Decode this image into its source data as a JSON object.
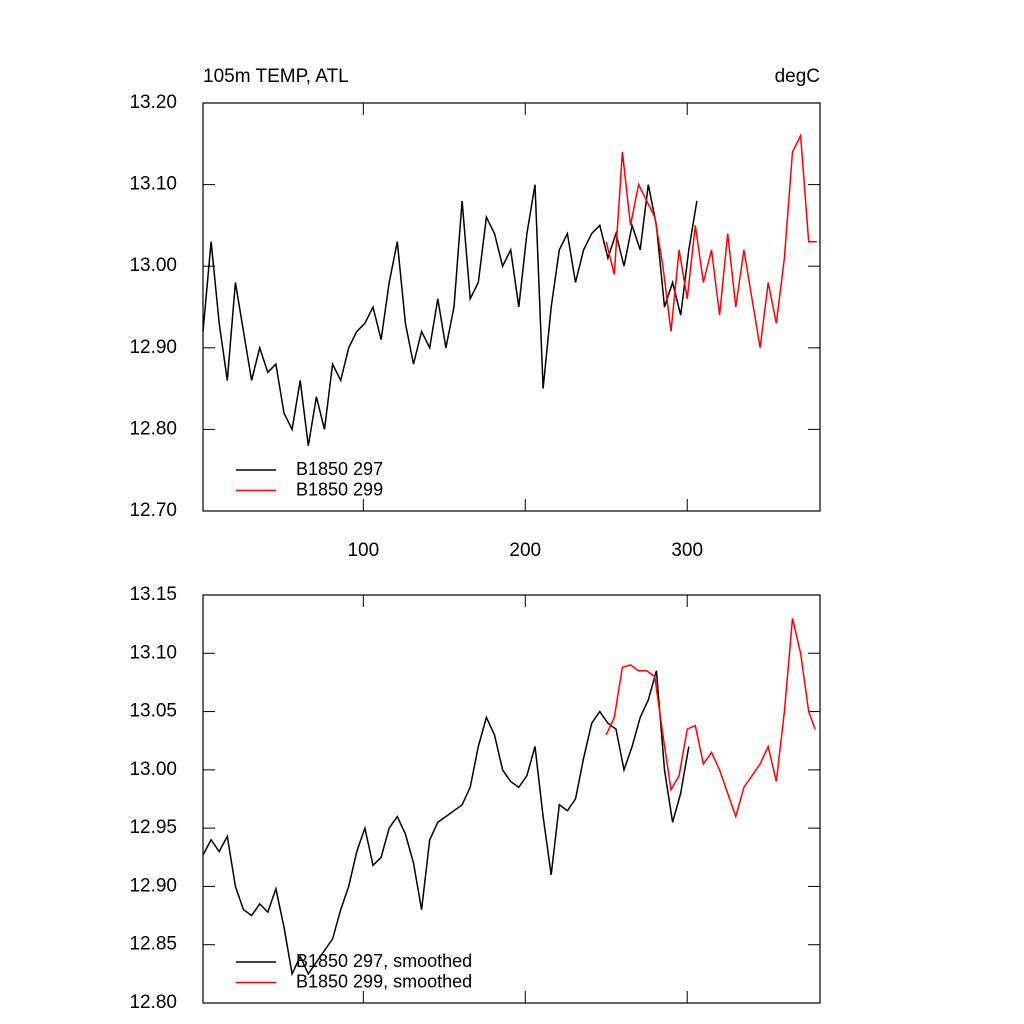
{
  "chart_data": [
    {
      "type": "line",
      "title": "105m TEMP, ATL",
      "units": "degC",
      "xlim": [
        1,
        382
      ],
      "xticks": [
        100,
        200,
        300
      ],
      "xtick_labels": true,
      "ylim": [
        12.7,
        13.2
      ],
      "yticks": [
        {
          "value": 12.7,
          "label": "12.70"
        },
        {
          "value": 12.8,
          "label": "12.80"
        },
        {
          "value": 12.9,
          "label": "12.90"
        },
        {
          "value": 13.0,
          "label": "13.00"
        },
        {
          "value": 13.1,
          "label": "13.10"
        },
        {
          "value": 13.2,
          "label": "13.20"
        }
      ],
      "legend": "lower left",
      "series": [
        {
          "name": "B1850 297",
          "color": "#000000",
          "x": [
            1,
            6,
            11,
            16,
            21,
            26,
            31,
            36,
            41,
            46,
            51,
            56,
            61,
            66,
            71,
            76,
            81,
            86,
            91,
            96,
            101,
            106,
            111,
            116,
            121,
            126,
            131,
            136,
            141,
            146,
            151,
            156,
            161,
            166,
            171,
            176,
            181,
            186,
            191,
            196,
            201,
            206,
            211,
            216,
            221,
            226,
            231,
            236,
            241,
            246,
            251,
            256,
            261,
            266,
            271,
            276,
            281,
            286,
            291,
            296,
            301,
            306
          ],
          "values": [
            12.92,
            13.03,
            12.93,
            12.86,
            12.98,
            12.92,
            12.86,
            12.9,
            12.87,
            12.88,
            12.82,
            12.8,
            12.86,
            12.78,
            12.84,
            12.8,
            12.88,
            12.86,
            12.9,
            12.92,
            12.93,
            12.95,
            12.91,
            12.98,
            13.03,
            12.93,
            12.88,
            12.92,
            12.9,
            12.96,
            12.9,
            12.95,
            13.08,
            12.96,
            12.98,
            13.06,
            13.04,
            13.0,
            13.02,
            12.95,
            13.04,
            13.1,
            12.85,
            12.95,
            13.02,
            13.04,
            12.98,
            13.02,
            13.04,
            13.05,
            13.01,
            13.04,
            13.0,
            13.05,
            13.02,
            13.1,
            13.05,
            12.95,
            12.98,
            12.94,
            13.02,
            13.08
          ]
        },
        {
          "name": "B1850 299",
          "color": "#ff0000",
          "x": [
            250,
            255,
            260,
            265,
            270,
            275,
            280,
            285,
            290,
            295,
            300,
            305,
            310,
            315,
            320,
            325,
            330,
            335,
            340,
            345,
            350,
            355,
            360,
            365,
            370,
            375,
            380
          ],
          "values": [
            13.03,
            12.99,
            13.14,
            13.05,
            13.1,
            13.08,
            13.06,
            13.0,
            12.92,
            13.02,
            12.96,
            13.05,
            12.98,
            13.02,
            12.94,
            13.04,
            12.95,
            13.02,
            12.96,
            12.9,
            12.98,
            12.93,
            13.01,
            13.14,
            13.16,
            13.03,
            13.03
          ]
        }
      ]
    },
    {
      "type": "line",
      "xlim": [
        1,
        382
      ],
      "xticks": [
        100,
        200,
        300
      ],
      "xtick_labels": false,
      "ylim": [
        12.8,
        13.15
      ],
      "yticks": [
        {
          "value": 12.8,
          "label": "12.80"
        },
        {
          "value": 12.85,
          "label": "12.85"
        },
        {
          "value": 12.9,
          "label": "12.90"
        },
        {
          "value": 12.95,
          "label": "12.95"
        },
        {
          "value": 13.0,
          "label": "13.00"
        },
        {
          "value": 13.05,
          "label": "13.05"
        },
        {
          "value": 13.1,
          "label": "13.10"
        },
        {
          "value": 13.15,
          "label": "13.15"
        }
      ],
      "legend": "lower left",
      "series": [
        {
          "name": "B1850 297, smoothed",
          "color": "#000000",
          "x": [
            1,
            6,
            11,
            16,
            21,
            26,
            31,
            36,
            41,
            46,
            51,
            56,
            61,
            66,
            71,
            76,
            81,
            86,
            91,
            96,
            101,
            106,
            111,
            116,
            121,
            126,
            131,
            136,
            141,
            146,
            151,
            156,
            161,
            166,
            171,
            176,
            181,
            186,
            191,
            196,
            201,
            206,
            211,
            216,
            221,
            226,
            231,
            236,
            241,
            246,
            251,
            256,
            261,
            266,
            271,
            276,
            281,
            286,
            291,
            296,
            301
          ],
          "values": [
            12.927,
            12.94,
            12.93,
            12.943,
            12.9,
            12.88,
            12.875,
            12.885,
            12.878,
            12.898,
            12.865,
            12.825,
            12.84,
            12.825,
            12.835,
            12.845,
            12.855,
            12.88,
            12.9,
            12.93,
            12.95,
            12.918,
            12.925,
            12.95,
            12.96,
            12.945,
            12.92,
            12.88,
            12.94,
            12.955,
            12.96,
            12.965,
            12.97,
            12.985,
            13.02,
            13.045,
            13.03,
            13.0,
            12.99,
            12.985,
            12.995,
            13.02,
            12.96,
            12.91,
            12.97,
            12.965,
            12.975,
            13.01,
            13.04,
            13.05,
            13.04,
            13.035,
            13.0,
            13.02,
            13.045,
            13.06,
            13.085,
            13.0,
            12.955,
            12.98,
            13.02
          ]
        },
        {
          "name": "B1850 299, smoothed",
          "color": "#ff0000",
          "x": [
            250,
            255,
            260,
            265,
            270,
            275,
            280,
            285,
            290,
            295,
            300,
            305,
            310,
            315,
            320,
            325,
            330,
            335,
            340,
            345,
            350,
            355,
            360,
            365,
            370,
            375,
            379
          ],
          "values": [
            13.03,
            13.045,
            13.088,
            13.09,
            13.085,
            13.085,
            13.08,
            13.03,
            12.983,
            12.995,
            13.035,
            13.038,
            13.005,
            13.015,
            13.0,
            12.98,
            12.96,
            12.985,
            12.995,
            13.005,
            13.02,
            12.99,
            13.05,
            13.13,
            13.1,
            13.05,
            13.035
          ]
        }
      ]
    }
  ]
}
